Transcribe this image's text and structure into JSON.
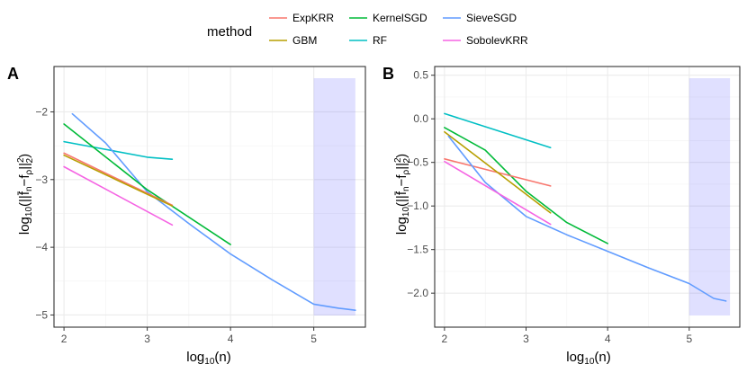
{
  "legend": {
    "title": "method",
    "entries": [
      {
        "name": "ExpKRR",
        "color": "#F8766D"
      },
      {
        "name": "GBM",
        "color": "#B79F00"
      },
      {
        "name": "KernelSGD",
        "color": "#00BA38"
      },
      {
        "name": "RF",
        "color": "#00BFC4"
      },
      {
        "name": "SieveSGD",
        "color": "#619CFF"
      },
      {
        "name": "SobolevKRR",
        "color": "#F564E3"
      }
    ]
  },
  "chart_data": [
    {
      "panel": "A",
      "type": "line",
      "xlabel": "log10(n)",
      "ylabel": "log10(||f̄n−fρ||2^2)",
      "xlim": [
        1.88,
        5.62
      ],
      "ylim": [
        -5.18,
        -1.33
      ],
      "xticks": [
        2,
        3,
        4,
        5
      ],
      "yticks": [
        -5,
        -4,
        -3,
        -2
      ],
      "xtick_labels": [
        "2",
        "3",
        "4",
        "5"
      ],
      "ytick_labels": [
        "−5",
        "−4",
        "−3",
        "−2"
      ],
      "shaded_x": [
        5.0,
        5.5
      ],
      "series": [
        {
          "name": "RF",
          "color": "#00BFC4",
          "x": [
            2.0,
            3.0,
            3.3
          ],
          "y": [
            -2.44,
            -2.67,
            -2.7
          ]
        },
        {
          "name": "SieveSGD",
          "color": "#619CFF",
          "x": [
            2.1,
            2.5,
            3.0,
            3.5,
            4.0,
            4.5,
            5.0,
            5.3,
            5.5
          ],
          "y": [
            -2.03,
            -2.46,
            -3.18,
            -3.65,
            -4.1,
            -4.48,
            -4.84,
            -4.9,
            -4.93
          ]
        },
        {
          "name": "KernelSGD",
          "color": "#00BA38",
          "x": [
            2.0,
            3.0,
            4.0
          ],
          "y": [
            -2.18,
            -3.15,
            -3.96
          ]
        },
        {
          "name": "SobolevKRR",
          "color": "#F564E3",
          "x": [
            2.0,
            3.3
          ],
          "y": [
            -2.81,
            -3.67
          ]
        },
        {
          "name": "ExpKRR",
          "color": "#F8766D",
          "x": [
            2.0,
            3.3
          ],
          "y": [
            -2.61,
            -3.38
          ]
        },
        {
          "name": "GBM",
          "color": "#B79F00",
          "x": [
            2.0,
            3.3
          ],
          "y": [
            -2.64,
            -3.39
          ]
        }
      ]
    },
    {
      "panel": "B",
      "type": "line",
      "xlabel": "log10(n)",
      "ylabel": "log10(||f̄n−fρ||2^2)",
      "xlim": [
        1.88,
        5.62
      ],
      "ylim": [
        -2.39,
        0.6
      ],
      "xticks": [
        2,
        3,
        4,
        5
      ],
      "yticks": [
        -2.0,
        -1.5,
        -1.0,
        -0.5,
        0.0,
        0.5
      ],
      "xtick_labels": [
        "2",
        "3",
        "4",
        "5"
      ],
      "ytick_labels": [
        "−2.0",
        "−1.5",
        "−1.0",
        "−0.5",
        "0.0",
        "0.5"
      ],
      "shaded_x": [
        5.0,
        5.5
      ],
      "series": [
        {
          "name": "RF",
          "color": "#00BFC4",
          "x": [
            2.0,
            3.3
          ],
          "y": [
            0.06,
            -0.33
          ]
        },
        {
          "name": "KernelSGD",
          "color": "#00BA38",
          "x": [
            2.0,
            2.5,
            3.0,
            3.5,
            4.0
          ],
          "y": [
            -0.1,
            -0.36,
            -0.83,
            -1.19,
            -1.43
          ]
        },
        {
          "name": "ExpKRR",
          "color": "#F8766D",
          "x": [
            2.0,
            3.3
          ],
          "y": [
            -0.46,
            -0.77
          ]
        },
        {
          "name": "GBM",
          "color": "#B79F00",
          "x": [
            2.0,
            3.3
          ],
          "y": [
            -0.15,
            -1.08
          ]
        },
        {
          "name": "SieveSGD",
          "color": "#619CFF",
          "x": [
            2.05,
            2.5,
            3.0,
            3.5,
            4.0,
            4.5,
            5.0,
            5.3,
            5.45
          ],
          "y": [
            -0.2,
            -0.73,
            -1.12,
            -1.33,
            -1.52,
            -1.71,
            -1.89,
            -2.06,
            -2.09
          ]
        },
        {
          "name": "SobolevKRR",
          "color": "#F564E3",
          "x": [
            2.0,
            3.3
          ],
          "y": [
            -0.49,
            -1.21
          ]
        }
      ]
    }
  ]
}
